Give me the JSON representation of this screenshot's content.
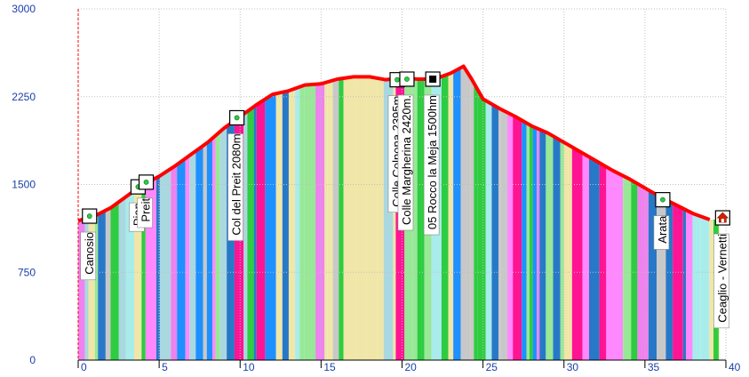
{
  "chart_data": {
    "type": "area",
    "title": "",
    "xlabel": "",
    "ylabel": "",
    "xlim": [
      0,
      40
    ],
    "ylim": [
      0,
      3000
    ],
    "x_ticks": [
      0,
      5,
      10,
      15,
      20,
      25,
      30,
      35,
      40
    ],
    "y_ticks": [
      0,
      750,
      1500,
      2250,
      3000
    ],
    "grid": true,
    "profile": [
      [
        0,
        1190
      ],
      [
        1,
        1230
      ],
      [
        2,
        1300
      ],
      [
        3,
        1400
      ],
      [
        4,
        1500
      ],
      [
        5,
        1570
      ],
      [
        6,
        1660
      ],
      [
        7,
        1760
      ],
      [
        8,
        1860
      ],
      [
        9,
        1980
      ],
      [
        10,
        2080
      ],
      [
        11,
        2180
      ],
      [
        12,
        2270
      ],
      [
        13,
        2300
      ],
      [
        14,
        2350
      ],
      [
        15,
        2360
      ],
      [
        16,
        2400
      ],
      [
        17,
        2420
      ],
      [
        18,
        2420
      ],
      [
        19,
        2395
      ],
      [
        20,
        2410
      ],
      [
        21,
        2400
      ],
      [
        22,
        2400
      ],
      [
        23,
        2450
      ],
      [
        23.8,
        2510
      ],
      [
        24.3,
        2400
      ],
      [
        25,
        2230
      ],
      [
        26,
        2150
      ],
      [
        27,
        2080
      ],
      [
        28,
        2000
      ],
      [
        29,
        1940
      ],
      [
        30,
        1860
      ],
      [
        31,
        1780
      ],
      [
        32,
        1700
      ],
      [
        33,
        1620
      ],
      [
        34,
        1550
      ],
      [
        35,
        1470
      ],
      [
        36,
        1390
      ],
      [
        37,
        1320
      ],
      [
        38,
        1250
      ],
      [
        39,
        1200
      ]
    ],
    "waypoints": [
      {
        "x": 0.7,
        "y": 1230,
        "label": "Canosio",
        "icon": "green-dot-marker"
      },
      {
        "x": 3.7,
        "y": 1480,
        "label": "Pian",
        "icon": "green-dot-marker"
      },
      {
        "x": 4.2,
        "y": 1520,
        "label": "Preit",
        "icon": "green-dot-marker"
      },
      {
        "x": 9.8,
        "y": 2070,
        "label": "Col del Preit 2080m",
        "icon": "green-dot-marker"
      },
      {
        "x": 19.7,
        "y": 2395,
        "label": "Colle Colnona 2395m",
        "icon": "green-dot-marker"
      },
      {
        "x": 20.3,
        "y": 2400,
        "label": "Colle Margherina 2420m.",
        "icon": "green-dot-marker"
      },
      {
        "x": 21.9,
        "y": 2400,
        "label": "05 Rocco la Meja 1500hm",
        "icon": "black-square-marker"
      },
      {
        "x": 36.1,
        "y": 1370,
        "label": "Arata",
        "icon": "green-dot-marker"
      },
      {
        "x": 39.8,
        "y": 1215,
        "label": "Ceaglio - Vernetti",
        "icon": "house-marker"
      }
    ],
    "colors": {
      "profile_line": "#ff0000",
      "grid": "#c0c0c0",
      "axis": "#000000",
      "tick_text": "#1a3fa8",
      "start_line": "#ff0000",
      "band_palette": [
        "#2ecc40",
        "#a8ecec",
        "#aad8e0",
        "#1e90ff",
        "#2878c8",
        "#f0e6a8",
        "#ee82ee",
        "#ff1493",
        "#c8c8c8",
        "#98e898",
        "#ff88ff"
      ]
    }
  }
}
